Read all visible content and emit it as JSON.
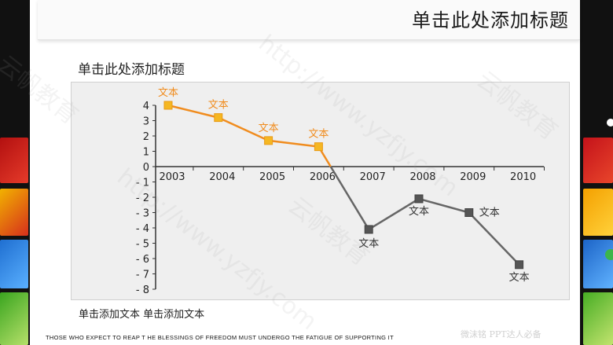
{
  "slide": {
    "title": "单击此处添加标题",
    "subtitle": "单击此处添加标题",
    "caption": "单击添加文本 单击添加文本",
    "footer_quote": "THOSE WHO EXPECT TO REAP T HE BLESSINGS OF FREEDOM MUST UNDERGO THE FATIGUE OF SUPPORTING IT",
    "footer_brand": "微沫铭 PPT达人必备"
  },
  "watermarks": {
    "url": "http://www.yzfjy.com",
    "brand": "云帆教育"
  },
  "colors": {
    "positive_line": "#f08c1e",
    "positive_marker": "#f5b722",
    "negative_line": "#666666",
    "negative_marker": "#555555",
    "axis": "#333333"
  },
  "chart_data": {
    "type": "line",
    "categories": [
      "2003",
      "2004",
      "2005",
      "2006",
      "2007",
      "2008",
      "2009",
      "2010"
    ],
    "values": [
      4,
      3.2,
      1.7,
      1.3,
      -4.1,
      -2.1,
      -3.0,
      -6.4
    ],
    "point_labels": [
      "文本",
      "文本",
      "文本",
      "文本",
      "文本",
      "文本",
      "文本",
      "文本"
    ],
    "ylim": [
      -8,
      4
    ],
    "yticks": [
      "4",
      "3",
      "2",
      "1",
      "0",
      "- 1",
      "- 2",
      "- 3",
      "- 4",
      "- 5",
      "- 6",
      "- 7",
      "- 8"
    ],
    "grid": false,
    "legend": "none"
  }
}
